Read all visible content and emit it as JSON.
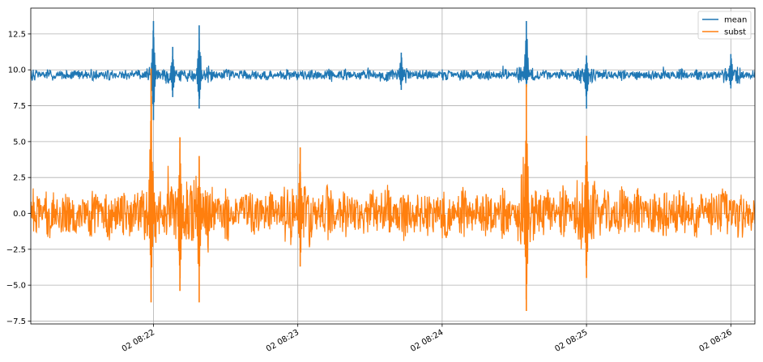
{
  "chart_data": {
    "type": "line",
    "x_axis_type": "datetime",
    "xlim": [
      "02 08:21:09",
      "02 08:26:10"
    ],
    "ylim": [
      -7.7,
      14.3
    ],
    "y_ticks": [
      -7.5,
      -5.0,
      -2.5,
      0.0,
      2.5,
      5.0,
      7.5,
      10.0,
      12.5
    ],
    "y_tick_labels": [
      "−7.5",
      "−5.0",
      "−2.5",
      "0.0",
      "2.5",
      "5.0",
      "7.5",
      "10.0",
      "12.5"
    ],
    "x_ticks": [
      "02 08:22:00",
      "02 08:23:00",
      "02 08:24:00",
      "02 08:25:00",
      "02 08:26:00"
    ],
    "x_tick_labels": [
      "02 08:22",
      "02 08:23",
      "02 08:24",
      "02 08:25",
      "02 08:26"
    ],
    "grid": true,
    "legend_position": "top-right",
    "series": [
      {
        "name": "mean",
        "color": "#1f77b4",
        "baseline": 9.65,
        "noise_amplitude": 0.35,
        "spikes": [
          {
            "time": "02 08:22:00",
            "min": 6.5,
            "max": 13.4
          },
          {
            "time": "02 08:22:08",
            "min": 8.1,
            "max": 11.6
          },
          {
            "time": "02 08:22:19",
            "min": 7.3,
            "max": 13.1
          },
          {
            "time": "02 08:23:43",
            "min": 8.6,
            "max": 11.2
          },
          {
            "time": "02 08:24:35",
            "min": 8.8,
            "max": 13.4
          },
          {
            "time": "02 08:25:00",
            "min": 7.3,
            "max": 11.0
          },
          {
            "time": "02 08:26:00",
            "min": 8.7,
            "max": 11.1
          }
        ]
      },
      {
        "name": "subst",
        "color": "#ff7f0e",
        "baseline": 0.0,
        "noise_amplitude": 1.6,
        "spikes": [
          {
            "time": "02 08:21:59",
            "min": -6.2,
            "max": 10.1
          },
          {
            "time": "02 08:22:11",
            "min": -5.4,
            "max": 5.3
          },
          {
            "time": "02 08:22:19",
            "min": -6.2,
            "max": 4.0
          },
          {
            "time": "02 08:23:01",
            "min": -3.7,
            "max": 4.6
          },
          {
            "time": "02 08:24:35",
            "min": -6.8,
            "max": 9.0
          },
          {
            "time": "02 08:25:00",
            "min": -4.5,
            "max": 5.4
          }
        ]
      }
    ]
  }
}
